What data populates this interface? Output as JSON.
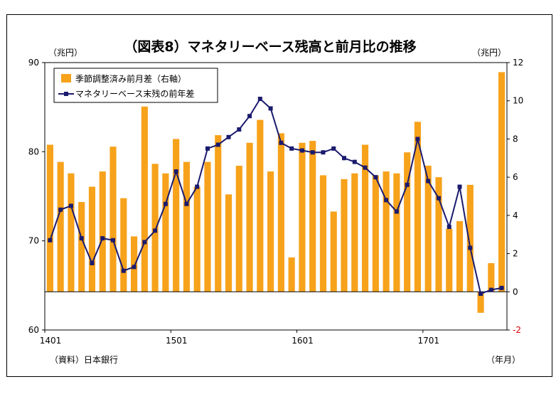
{
  "chart_data": {
    "type": "bar+line",
    "title": "（図表8）マネタリーベース残高と前月比の推移",
    "left_unit": "（兆円）",
    "right_unit": "（兆円）",
    "x_unit": "（年月）",
    "source": "（資料）日本銀行",
    "left_axis": {
      "ylim": [
        60,
        90
      ],
      "ticks": [
        60,
        70,
        80,
        90
      ]
    },
    "right_axis": {
      "ylim": [
        -2,
        12
      ],
      "ticks": [
        -2,
        0,
        2,
        4,
        6,
        8,
        10,
        12
      ]
    },
    "x_tick_labels": [
      "1401",
      "1501",
      "1601",
      "1701"
    ],
    "x_tick_index": [
      0,
      12,
      24,
      36
    ],
    "categories": [
      "1401",
      "1402",
      "1403",
      "1404",
      "1405",
      "1406",
      "1407",
      "1408",
      "1409",
      "1410",
      "1411",
      "1412",
      "1501",
      "1502",
      "1503",
      "1504",
      "1505",
      "1506",
      "1507",
      "1508",
      "1509",
      "1510",
      "1511",
      "1512",
      "1601",
      "1602",
      "1603",
      "1604",
      "1605",
      "1606",
      "1607",
      "1608",
      "1609",
      "1610",
      "1611",
      "1612",
      "1701",
      "1702",
      "1703",
      "1704",
      "1705",
      "1706",
      "1707",
      "1708"
    ],
    "series": [
      {
        "name": "季節調整済み前月差（右軸）",
        "kind": "bar",
        "axis": "right",
        "color": "#f7a21b",
        "values": [
          7.7,
          6.8,
          6.2,
          4.7,
          5.5,
          6.3,
          7.6,
          4.9,
          2.9,
          9.7,
          6.7,
          6.2,
          8.0,
          6.8,
          5.5,
          6.8,
          8.2,
          5.1,
          6.6,
          7.8,
          9.0,
          6.3,
          8.3,
          1.8,
          7.8,
          7.9,
          6.1,
          4.2,
          5.9,
          6.2,
          7.7,
          6.1,
          6.3,
          6.2,
          7.3,
          8.9,
          6.6,
          6.0,
          3.3,
          3.7,
          5.6,
          -1.1,
          1.5,
          11.5
        ]
      },
      {
        "name": "マネタリーベース末残の前年差",
        "kind": "line",
        "axis": "right",
        "color": "#1a1a6e",
        "values": [
          2.7,
          4.3,
          4.5,
          2.8,
          1.5,
          2.8,
          2.7,
          1.1,
          1.3,
          2.6,
          3.2,
          4.6,
          6.3,
          4.6,
          5.5,
          7.5,
          7.7,
          8.1,
          8.5,
          9.2,
          10.1,
          9.6,
          7.8,
          7.5,
          7.4,
          7.3,
          7.3,
          7.5,
          7.0,
          6.8,
          6.5,
          6.0,
          4.8,
          4.2,
          5.6,
          8.0,
          5.8,
          4.9,
          3.4,
          5.5,
          2.3,
          -0.1,
          0.1,
          0.2
        ]
      }
    ]
  }
}
